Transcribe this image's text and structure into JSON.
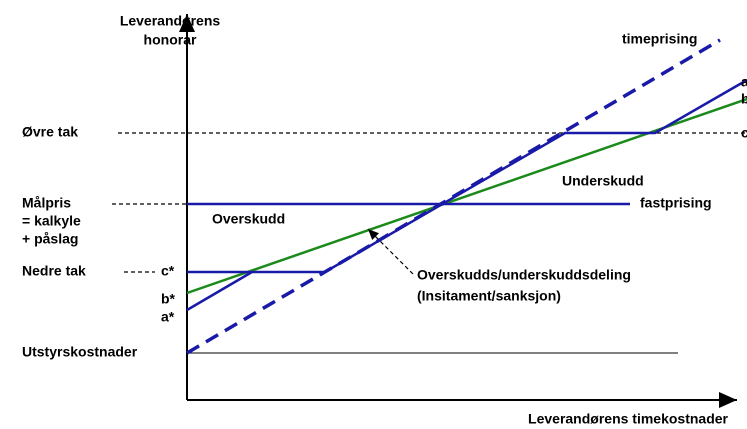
{
  "y_axis_label": [
    "Leverandørens",
    "honorar"
  ],
  "x_axis_label": "Leverandørens timekostnader",
  "left_labels": {
    "upper_cap": "Øvre tak",
    "target_price": [
      "Målpris",
      "= kalkyle",
      "+ påslag"
    ],
    "lower_cap": "Nedre tak",
    "equipment_costs": "Utstyrskostnader"
  },
  "axis_markers": {
    "c": "c*",
    "b": "b*",
    "a": "a*"
  },
  "right_labels": {
    "hourly": "timeprising",
    "a": "a",
    "b": "b",
    "c": "c",
    "fixed": "fastprising"
  },
  "regions": {
    "surplus": "Overskudd",
    "deficit": "Underskudd"
  },
  "annotation": [
    "Overskudds/underskuddsdeling",
    "(Insitament/sanksjon)"
  ]
}
